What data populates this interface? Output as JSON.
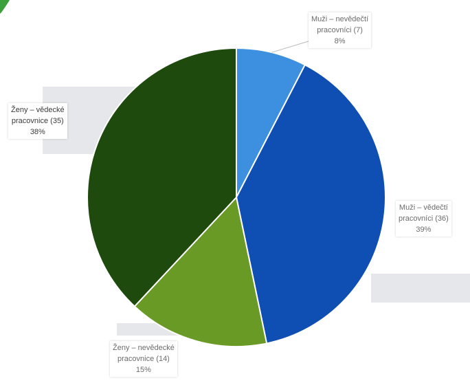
{
  "chart_data": {
    "type": "pie",
    "slices": [
      {
        "label": "Muži – nevědečtí pracovníci (7)",
        "line1": "Muži – nevědečtí",
        "line2": "pracovníci (7)",
        "percent_text": "8%",
        "value": 7,
        "color": "#3d8fe0"
      },
      {
        "label": "Muži – vědečtí pracovníci (36)",
        "line1": "Muži – vědečtí",
        "line2": "pracovníci (36)",
        "percent_text": "39%",
        "value": 36,
        "color": "#0f4fb3"
      },
      {
        "label": "Ženy – nevědecké pracovnice (14)",
        "line1": "Ženy – nevědecké",
        "line2": "pracovnice (14)",
        "percent_text": "15%",
        "value": 14,
        "color": "#6a9a26"
      },
      {
        "label": "Ženy – vědecké pracovnice (35)",
        "line1": "Ženy – vědecké",
        "line2": "pracovnice (35)",
        "percent_text": "38%",
        "value": 35,
        "color": "#1e4a0d"
      }
    ]
  },
  "colors": {
    "corner_accent": "#3ca03c",
    "slice_border": "#ffffff"
  }
}
